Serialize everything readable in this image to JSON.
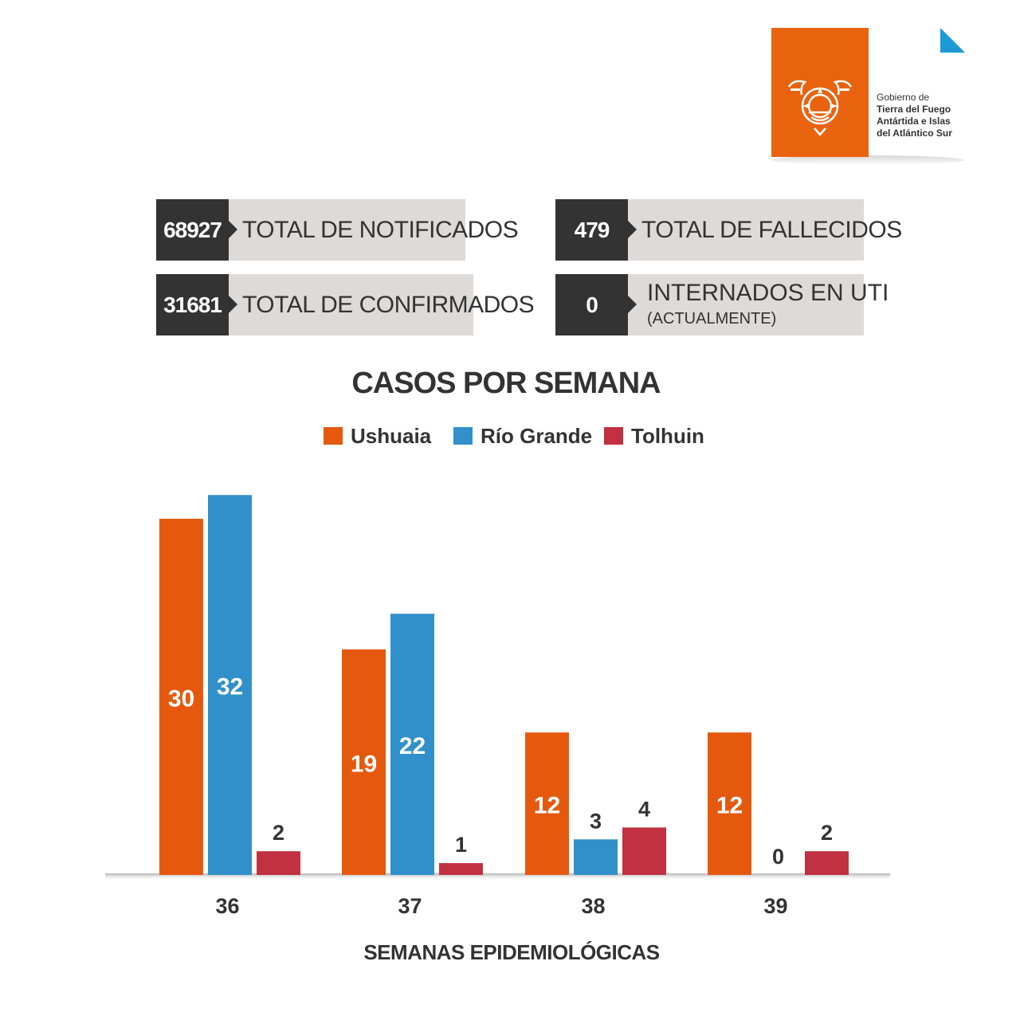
{
  "logo": {
    "line1": "Gobierno de",
    "line2": "Tierra del Fuego",
    "line3": "Antártida e Islas",
    "line4": "del Atlántico Sur"
  },
  "stats": {
    "notificados": {
      "value": "68927",
      "label": "TOTAL DE NOTIFICADOS"
    },
    "fallecidos": {
      "value": "479",
      "label": "TOTAL DE FALLECIDOS"
    },
    "confirmados": {
      "value": "31681",
      "label": "TOTAL DE CONFIRMADOS"
    },
    "uti": {
      "value": "0",
      "label": "INTERNADOS EN UTI",
      "sub": "(ACTUALMENTE)"
    }
  },
  "colors": {
    "ushuaia": "#E5590F",
    "rio_grande": "#3190C9",
    "tolhuin": "#C23141",
    "dark": "#333333",
    "brand_orange": "#E9620E",
    "corner_blue": "#1B9AD6"
  },
  "chart_data": {
    "type": "bar",
    "title": "CASOS POR SEMANA",
    "xlabel": "SEMANAS EPIDEMIOLÓGICAS",
    "ylabel": "",
    "categories": [
      "36",
      "37",
      "38",
      "39"
    ],
    "series": [
      {
        "name": "Ushuaia",
        "color": "#E5590F",
        "values": [
          30,
          19,
          12,
          12
        ]
      },
      {
        "name": "Río Grande",
        "color": "#3190C9",
        "values": [
          32,
          22,
          3,
          0
        ]
      },
      {
        "name": "Tolhuin",
        "color": "#C23141",
        "values": [
          2,
          1,
          4,
          2
        ]
      }
    ],
    "ylim": [
      0,
      32
    ],
    "grid": false,
    "legend": "top-center",
    "data_labels": true
  }
}
